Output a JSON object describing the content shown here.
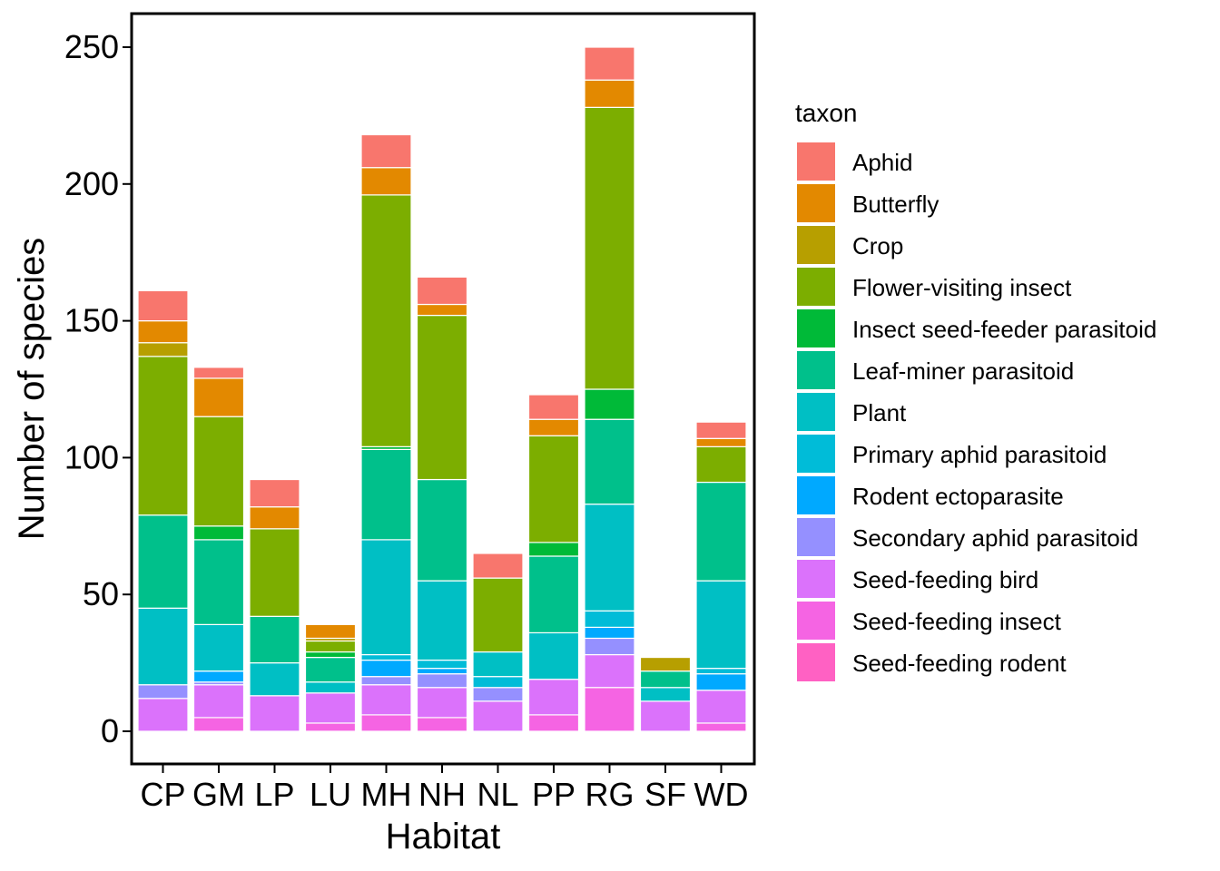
{
  "chart_data": {
    "type": "bar",
    "stacked": true,
    "xlabel": "Habitat",
    "ylabel": "Number of species",
    "ylim": [
      0,
      262
    ],
    "yticks": [
      0,
      50,
      100,
      150,
      200,
      250
    ],
    "grid": false,
    "legend_title": "taxon",
    "legend_position": "right",
    "categories": [
      "CP",
      "GM",
      "LP",
      "LU",
      "MH",
      "NH",
      "NL",
      "PP",
      "RG",
      "SF",
      "WD"
    ],
    "series": [
      {
        "name": "Seed-feeding rodent",
        "color": "#FF61C3",
        "values": [
          0,
          0,
          0,
          0,
          0,
          0,
          0,
          0,
          0,
          0,
          0
        ]
      },
      {
        "name": "Seed-feeding insect",
        "color": "#F564E3",
        "values": [
          0,
          5,
          0,
          3,
          6,
          5,
          0,
          6,
          16,
          0,
          3
        ]
      },
      {
        "name": "Seed-feeding bird",
        "color": "#DB72FB",
        "values": [
          12,
          12,
          13,
          11,
          11,
          11,
          11,
          13,
          12,
          11,
          12
        ]
      },
      {
        "name": "Secondary aphid parasitoid",
        "color": "#9590FF",
        "values": [
          5,
          1,
          0,
          0,
          3,
          5,
          5,
          0,
          6,
          0,
          0
        ]
      },
      {
        "name": "Rodent ectoparasite",
        "color": "#00A9FF",
        "values": [
          0,
          4,
          0,
          0,
          6,
          2,
          0,
          0,
          4,
          0,
          6
        ]
      },
      {
        "name": "Primary aphid parasitoid",
        "color": "#00BCD8",
        "values": [
          0,
          0,
          0,
          0,
          2,
          3,
          4,
          0,
          6,
          0,
          2
        ]
      },
      {
        "name": "Plant",
        "color": "#00BFC4",
        "values": [
          28,
          17,
          12,
          4,
          42,
          29,
          9,
          17,
          39,
          5,
          32
        ]
      },
      {
        "name": "Leaf-miner parasitoid",
        "color": "#00C08B",
        "values": [
          34,
          31,
          17,
          9,
          33,
          37,
          0,
          28,
          31,
          6,
          36
        ]
      },
      {
        "name": "Insect seed-feeder parasitoid",
        "color": "#00BA38",
        "values": [
          0,
          5,
          0,
          2,
          1,
          0,
          0,
          5,
          11,
          0,
          0
        ]
      },
      {
        "name": "Flower-visiting insect",
        "color": "#7CAE00",
        "values": [
          58,
          40,
          32,
          4,
          92,
          60,
          27,
          39,
          103,
          0,
          13
        ]
      },
      {
        "name": "Crop",
        "color": "#B79F00",
        "values": [
          5,
          0,
          0,
          1,
          0,
          0,
          0,
          0,
          0,
          5,
          0
        ]
      },
      {
        "name": "Butterfly",
        "color": "#E38900",
        "values": [
          8,
          14,
          8,
          5,
          10,
          4,
          0,
          6,
          10,
          0,
          3
        ]
      },
      {
        "name": "Aphid",
        "color": "#F8766D",
        "values": [
          11,
          4,
          10,
          0,
          12,
          10,
          9,
          9,
          12,
          0,
          6
        ]
      }
    ],
    "legend_order": [
      "Aphid",
      "Butterfly",
      "Crop",
      "Flower-visiting insect",
      "Insect seed-feeder parasitoid",
      "Leaf-miner parasitoid",
      "Plant",
      "Primary aphid parasitoid",
      "Rodent ectoparasite",
      "Secondary aphid parasitoid",
      "Seed-feeding bird",
      "Seed-feeding insect",
      "Seed-feeding rodent"
    ]
  }
}
